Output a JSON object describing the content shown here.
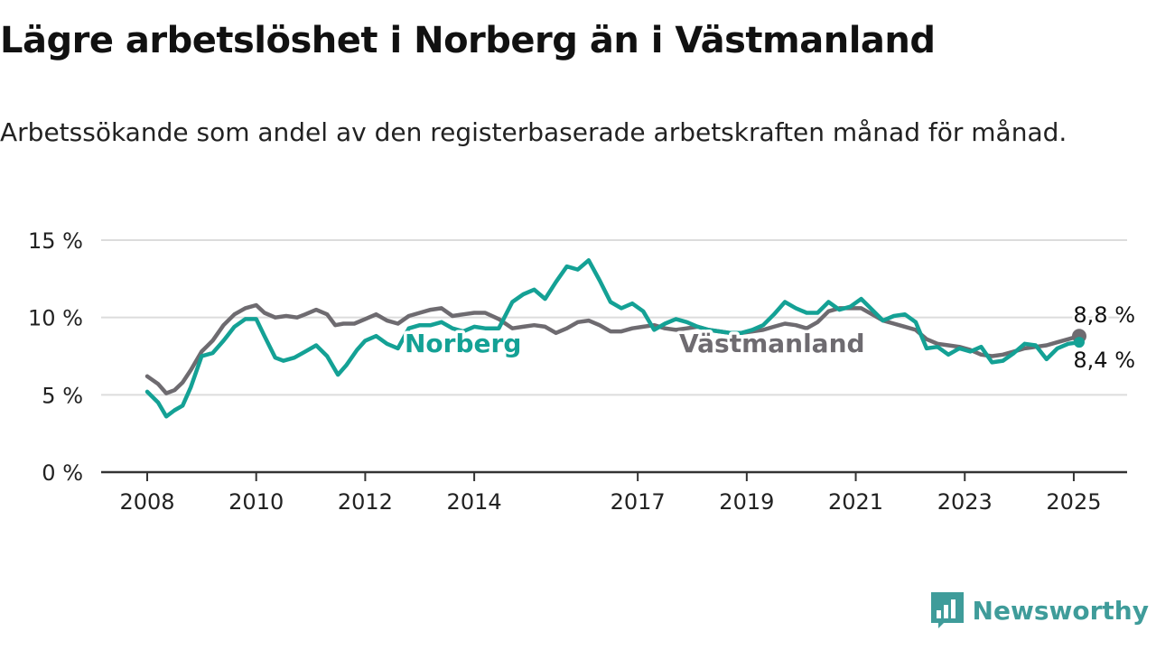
{
  "title": "Lägre arbetslöshet i Norberg än i Västmanland",
  "subtitle": "Arbetssökande som andel av den registerbaserade arbetskraften månad för månad.",
  "brand": {
    "name": "Newsworthy"
  },
  "colors": {
    "norberg": "#14a195",
    "vastmanland": "#6e6b70",
    "brand": "#3f9c9a"
  },
  "chart_data": {
    "type": "line",
    "title": "Lägre arbetslöshet i Norberg än i Västmanland",
    "ylim": [
      0,
      15
    ],
    "xlim": [
      2008,
      2025.6
    ],
    "y_ticks": [
      {
        "value": 0,
        "label": "0 %"
      },
      {
        "value": 5,
        "label": "5 %"
      },
      {
        "value": 10,
        "label": "10 %"
      },
      {
        "value": 15,
        "label": "15 %"
      }
    ],
    "x_ticks": [
      "2008",
      "2010",
      "2012",
      "2014",
      "2017",
      "2019",
      "2021",
      "2023",
      "2025"
    ],
    "grid": "horizontal",
    "end_labels": {
      "vastmanland": "8,8 %",
      "norberg": "8,4 %"
    },
    "series": [
      {
        "name": "Norberg",
        "color": "#14a195",
        "x": [
          2008.0,
          2008.2,
          2008.35,
          2008.5,
          2008.65,
          2008.8,
          2009.0,
          2009.2,
          2009.4,
          2009.6,
          2009.8,
          2010.0,
          2010.15,
          2010.35,
          2010.5,
          2010.7,
          2010.9,
          2011.1,
          2011.3,
          2011.5,
          2011.65,
          2011.85,
          2012.0,
          2012.2,
          2012.4,
          2012.6,
          2012.8,
          2013.0,
          2013.2,
          2013.4,
          2013.6,
          2013.8,
          2014.0,
          2014.2,
          2014.45,
          2014.7,
          2014.9,
          2015.1,
          2015.3,
          2015.5,
          2015.7,
          2015.9,
          2016.1,
          2016.3,
          2016.5,
          2016.7,
          2016.9,
          2017.1,
          2017.3,
          2017.5,
          2017.7,
          2017.9,
          2018.1,
          2018.3,
          2018.5,
          2018.7,
          2018.9,
          2019.1,
          2019.3,
          2019.5,
          2019.7,
          2019.9,
          2020.1,
          2020.3,
          2020.5,
          2020.7,
          2020.9,
          2021.1,
          2021.3,
          2021.5,
          2021.7,
          2021.9,
          2022.1,
          2022.3,
          2022.5,
          2022.7,
          2022.9,
          2023.1,
          2023.3,
          2023.5,
          2023.7,
          2023.9,
          2024.1,
          2024.3,
          2024.5,
          2024.7,
          2024.9,
          2025.1
        ],
        "y": [
          5.2,
          4.5,
          3.6,
          4.0,
          4.3,
          5.5,
          7.5,
          7.7,
          8.5,
          9.4,
          9.9,
          9.9,
          8.8,
          7.4,
          7.2,
          7.4,
          7.8,
          8.2,
          7.5,
          6.3,
          6.9,
          7.9,
          8.5,
          8.8,
          8.3,
          8.0,
          9.3,
          9.5,
          9.5,
          9.7,
          9.3,
          9.1,
          9.4,
          9.3,
          9.3,
          11.0,
          11.5,
          11.8,
          11.2,
          12.3,
          13.3,
          13.1,
          13.7,
          12.4,
          11.0,
          10.6,
          10.9,
          10.4,
          9.2,
          9.6,
          9.9,
          9.7,
          9.4,
          9.2,
          9.1,
          9.0,
          9.0,
          9.2,
          9.5,
          10.2,
          11.0,
          10.6,
          10.3,
          10.3,
          11.0,
          10.5,
          10.7,
          11.2,
          10.5,
          9.8,
          10.1,
          10.2,
          9.7,
          8.0,
          8.1,
          7.6,
          8.0,
          7.8,
          8.1,
          7.1,
          7.2,
          7.7,
          8.3,
          8.2,
          7.3,
          8.0,
          8.3,
          8.4
        ]
      },
      {
        "name": "Västmanland",
        "color": "#6e6b70",
        "x": [
          2008.0,
          2008.2,
          2008.35,
          2008.5,
          2008.65,
          2008.8,
          2009.0,
          2009.2,
          2009.4,
          2009.6,
          2009.8,
          2010.0,
          2010.15,
          2010.35,
          2010.55,
          2010.75,
          2010.9,
          2011.1,
          2011.3,
          2011.45,
          2011.6,
          2011.8,
          2012.0,
          2012.2,
          2012.4,
          2012.6,
          2012.8,
          2013.0,
          2013.2,
          2013.4,
          2013.6,
          2013.8,
          2014.0,
          2014.2,
          2014.45,
          2014.7,
          2014.9,
          2015.1,
          2015.3,
          2015.5,
          2015.7,
          2015.9,
          2016.1,
          2016.3,
          2016.5,
          2016.7,
          2016.9,
          2017.1,
          2017.3,
          2017.5,
          2017.7,
          2017.9,
          2018.1,
          2018.3,
          2018.5,
          2018.7,
          2018.9,
          2019.1,
          2019.3,
          2019.5,
          2019.7,
          2019.9,
          2020.1,
          2020.3,
          2020.5,
          2020.7,
          2020.9,
          2021.1,
          2021.3,
          2021.5,
          2021.7,
          2021.9,
          2022.1,
          2022.3,
          2022.5,
          2022.7,
          2022.9,
          2023.1,
          2023.3,
          2023.5,
          2023.7,
          2023.9,
          2024.1,
          2024.3,
          2024.5,
          2024.7,
          2024.9,
          2025.1
        ],
        "y": [
          6.2,
          5.7,
          5.1,
          5.3,
          5.8,
          6.6,
          7.8,
          8.5,
          9.5,
          10.2,
          10.6,
          10.8,
          10.3,
          10.0,
          10.1,
          10.0,
          10.2,
          10.5,
          10.2,
          9.5,
          9.6,
          9.6,
          9.9,
          10.2,
          9.8,
          9.6,
          10.1,
          10.3,
          10.5,
          10.6,
          10.1,
          10.2,
          10.3,
          10.3,
          9.9,
          9.3,
          9.4,
          9.5,
          9.4,
          9.0,
          9.3,
          9.7,
          9.8,
          9.5,
          9.1,
          9.1,
          9.3,
          9.4,
          9.5,
          9.3,
          9.2,
          9.3,
          9.4,
          9.2,
          9.1,
          9.0,
          9.0,
          9.1,
          9.2,
          9.4,
          9.6,
          9.5,
          9.3,
          9.7,
          10.4,
          10.6,
          10.6,
          10.6,
          10.2,
          9.8,
          9.6,
          9.4,
          9.2,
          8.6,
          8.3,
          8.2,
          8.1,
          7.9,
          7.6,
          7.5,
          7.6,
          7.8,
          8.0,
          8.1,
          8.2,
          8.4,
          8.6,
          8.8
        ]
      }
    ]
  }
}
